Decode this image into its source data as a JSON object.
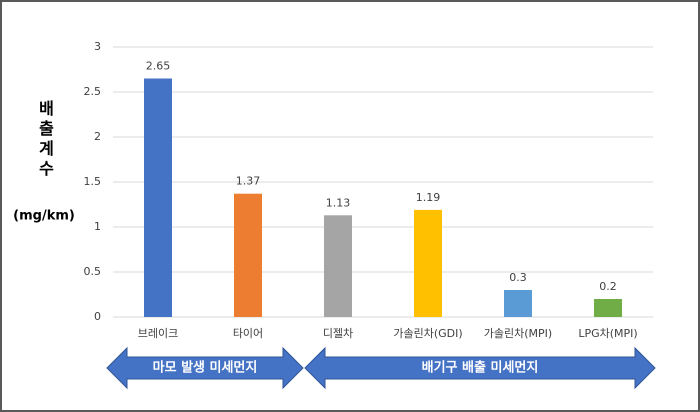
{
  "chart_data": {
    "type": "bar",
    "y_label": "배출계수",
    "y_unit": "(mg/km)",
    "categories": [
      "브레이크",
      "타이어",
      "디젤차",
      "가솔린차(GDI)",
      "가솔린차(MPI)",
      "LPG차(MPI)"
    ],
    "values": [
      2.65,
      1.37,
      1.13,
      1.19,
      0.3,
      0.2
    ],
    "colors": [
      "#4472c4",
      "#ed7d31",
      "#a5a5a5",
      "#ffc000",
      "#5b9bd5",
      "#70ad47"
    ],
    "ylim": [
      0,
      3
    ],
    "yticks": [
      0,
      0.5,
      1,
      1.5,
      2,
      2.5,
      3
    ],
    "grid": true,
    "annotations": [
      "마모 발생 미세먼지",
      "배기구 배출 미세먼지"
    ]
  }
}
